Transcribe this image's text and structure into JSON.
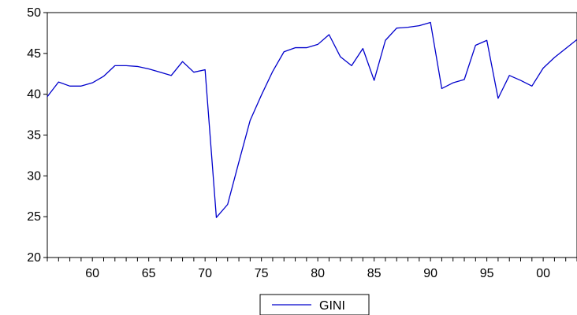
{
  "chart_data": {
    "type": "line",
    "title": "",
    "xlabel": "",
    "ylabel": "",
    "xlim": [
      1956,
      2003
    ],
    "ylim": [
      20,
      50
    ],
    "y_ticks": [
      20,
      25,
      30,
      35,
      40,
      45,
      50
    ],
    "x_ticks": [
      {
        "value": 1960,
        "label": "60"
      },
      {
        "value": 1965,
        "label": "65"
      },
      {
        "value": 1970,
        "label": "70"
      },
      {
        "value": 1975,
        "label": "75"
      },
      {
        "value": 1980,
        "label": "80"
      },
      {
        "value": 1985,
        "label": "85"
      },
      {
        "value": 1990,
        "label": "90"
      },
      {
        "value": 1995,
        "label": "95"
      },
      {
        "value": 2000,
        "label": "00"
      }
    ],
    "grid": false,
    "legend_position": "bottom-center",
    "series": [
      {
        "name": "GINI",
        "color": "#0000cc",
        "x": [
          1956,
          1957,
          1958,
          1959,
          1960,
          1961,
          1962,
          1963,
          1964,
          1965,
          1966,
          1967,
          1968,
          1969,
          1970,
          1971,
          1972,
          1973,
          1974,
          1975,
          1976,
          1977,
          1978,
          1979,
          1980,
          1981,
          1982,
          1983,
          1984,
          1985,
          1986,
          1987,
          1988,
          1989,
          1990,
          1991,
          1992,
          1993,
          1994,
          1995,
          1996,
          1997,
          1998,
          1999,
          2000,
          2001,
          2002,
          2003
        ],
        "values": [
          39.7,
          41.5,
          41.0,
          41.0,
          41.4,
          42.2,
          43.5,
          43.5,
          43.4,
          43.1,
          42.7,
          42.3,
          44.0,
          42.7,
          43.0,
          24.9,
          26.5,
          31.7,
          36.8,
          39.9,
          42.8,
          45.2,
          45.7,
          45.7,
          46.1,
          47.3,
          44.6,
          43.5,
          45.6,
          41.7,
          46.6,
          48.1,
          48.2,
          48.4,
          48.8,
          40.7,
          41.4,
          41.8,
          46.0,
          46.6,
          39.5,
          42.3,
          41.7,
          41.0,
          43.2,
          44.5,
          45.6,
          46.7
        ]
      }
    ]
  }
}
